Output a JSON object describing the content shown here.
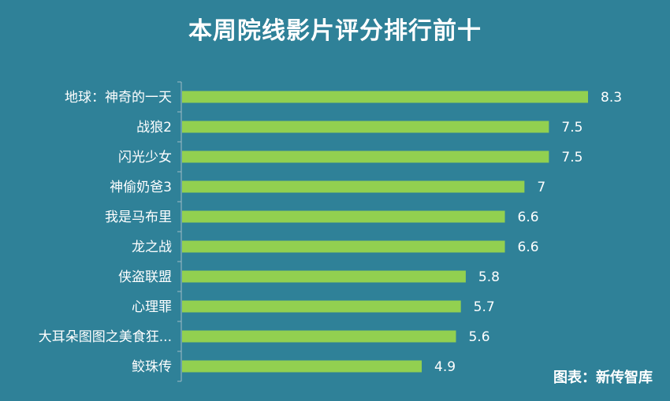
{
  "title": "本周院线影片评分排行前十",
  "source": "图表：新传智库",
  "colors": {
    "background": "#2f8198",
    "bar": "#92d050",
    "text": "#ffffff"
  },
  "chart_data": {
    "type": "bar",
    "orientation": "horizontal",
    "title": "本周院线影片评分排行前十",
    "categories": [
      "地球：神奇的一天",
      "战狼2",
      "闪光少女",
      "神偷奶爸3",
      "我是马布里",
      "龙之战",
      "侠盗联盟",
      "心理罪",
      "大耳朵图图之美食狂...",
      "鲛珠传"
    ],
    "values": [
      8.3,
      7.5,
      7.5,
      7,
      6.6,
      6.6,
      5.8,
      5.7,
      5.6,
      4.9
    ],
    "value_labels": [
      "8.3",
      "7.5",
      "7.5",
      "7",
      "6.6",
      "6.6",
      "5.8",
      "5.7",
      "5.6",
      "4.9"
    ],
    "xlim": [
      0,
      9
    ],
    "grid": false,
    "legend": "none"
  }
}
